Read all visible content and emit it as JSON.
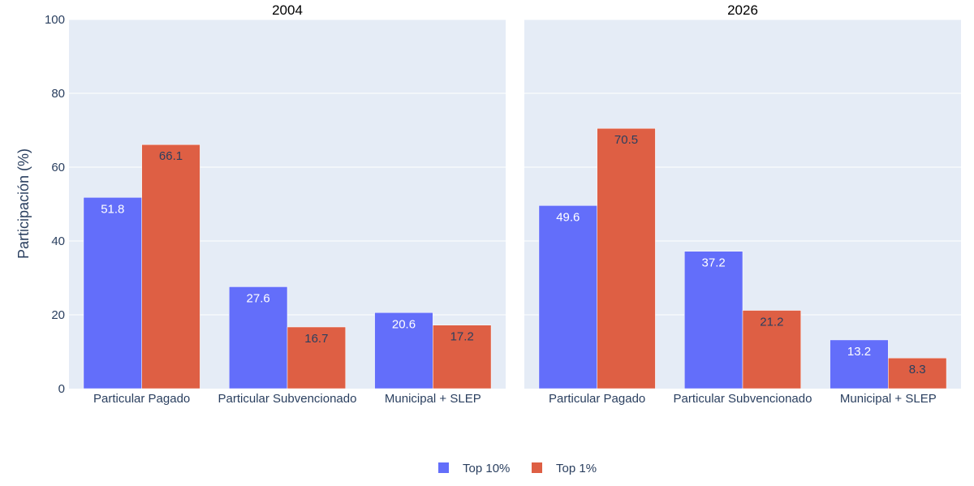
{
  "chart_data": {
    "type": "bar",
    "ylabel": "Participación (%)",
    "ylim": [
      0,
      100
    ],
    "yticks": [
      0,
      20,
      40,
      60,
      80,
      100
    ],
    "legend_position": "bottom-center",
    "colors": {
      "background": "#E5ECF6",
      "grid": "#ffffff",
      "top10": "#636EFA",
      "top1": "#DE5F44"
    },
    "series_names": [
      "Top 10%",
      "Top 1%"
    ],
    "panels": [
      {
        "title": "2004",
        "categories": [
          "Particular Pagado",
          "Particular Subvencionado",
          "Municipal + SLEP"
        ],
        "series": [
          {
            "name": "Top 10%",
            "values": [
              51.8,
              27.6,
              20.6
            ],
            "labels": [
              "51.8",
              "27.6",
              "20.6"
            ]
          },
          {
            "name": "Top 1%",
            "values": [
              66.1,
              16.7,
              17.2
            ],
            "labels": [
              "66.1",
              "16.7",
              "17.2"
            ]
          }
        ]
      },
      {
        "title": "2026",
        "categories": [
          "Particular Pagado",
          "Particular Subvencionado",
          "Municipal + SLEP"
        ],
        "series": [
          {
            "name": "Top 10%",
            "values": [
              49.6,
              37.2,
              13.2
            ],
            "labels": [
              "49.6",
              "37.2",
              "13.2"
            ]
          },
          {
            "name": "Top 1%",
            "values": [
              70.5,
              21.2,
              8.3
            ],
            "labels": [
              "70.5",
              "21.2",
              "8.3"
            ]
          }
        ]
      }
    ]
  }
}
